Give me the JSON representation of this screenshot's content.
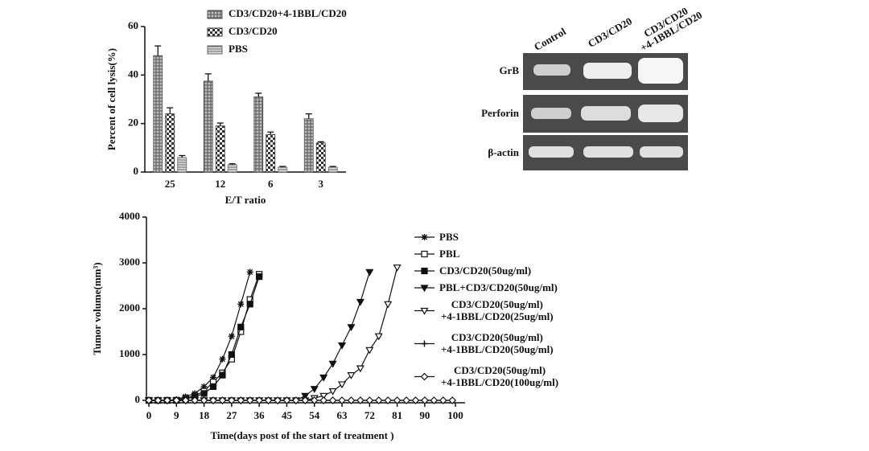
{
  "chart_data": [
    {
      "type": "bar",
      "y_label": "Percent of cell lysis(%)",
      "x_label": "E/T ratio",
      "categories": [
        "25",
        "12",
        "6",
        "3"
      ],
      "ylim": [
        0,
        60
      ],
      "yticks": [
        0,
        20,
        40,
        60
      ],
      "series": [
        {
          "name": "CD3/CD20+4-1BBL/CD20",
          "color": "#555555",
          "pattern": "hatch",
          "values": [
            48,
            37.5,
            31,
            22
          ],
          "errors": [
            4,
            3,
            1.5,
            2
          ]
        },
        {
          "name": "CD3/CD20",
          "color": "#333333",
          "pattern": "checker",
          "values": [
            24,
            19,
            15.5,
            12
          ],
          "errors": [
            2.5,
            1.2,
            1,
            0.5
          ]
        },
        {
          "name": "PBS",
          "color": "#666666",
          "pattern": "stripes",
          "values": [
            6,
            3,
            2,
            2
          ],
          "errors": [
            0.8,
            0.4,
            0.3,
            0.3
          ]
        }
      ]
    },
    {
      "type": "line",
      "y_label": "Tumor volume(mm³)",
      "x_label": "Time(days post of the start of treatment )",
      "xlim": [
        0,
        100
      ],
      "xticks": [
        0,
        9,
        18,
        27,
        36,
        45,
        54,
        63,
        72,
        81,
        90,
        100
      ],
      "ylim": [
        0,
        4000
      ],
      "yticks": [
        0,
        1000,
        2000,
        3000,
        4000
      ],
      "series": [
        {
          "name": "PBS",
          "marker": "star",
          "color": "#111111",
          "x": [
            0,
            3,
            6,
            9,
            12,
            15,
            18,
            21,
            24,
            27,
            30,
            33
          ],
          "values": [
            0,
            0,
            0,
            20,
            80,
            150,
            300,
            500,
            900,
            1400,
            2100,
            2800
          ]
        },
        {
          "name": "PBL",
          "marker": "square-open",
          "color": "#111111",
          "x": [
            0,
            3,
            6,
            9,
            12,
            15,
            18,
            21,
            24,
            27,
            30,
            33,
            36
          ],
          "values": [
            0,
            0,
            0,
            0,
            50,
            100,
            200,
            400,
            600,
            900,
            1500,
            2200,
            2750
          ]
        },
        {
          "name": "CD3/CD20(50ug/ml)",
          "marker": "square",
          "color": "#111111",
          "x": [
            0,
            3,
            6,
            9,
            12,
            15,
            18,
            21,
            24,
            27,
            30,
            33,
            36
          ],
          "values": [
            0,
            0,
            0,
            0,
            30,
            80,
            150,
            300,
            550,
            1000,
            1600,
            2100,
            2700
          ]
        },
        {
          "name": "PBL+CD3/CD20(50ug/ml)",
          "marker": "triangle-down",
          "color": "#111111",
          "x": [
            0,
            3,
            6,
            9,
            12,
            15,
            18,
            21,
            24,
            27,
            30,
            33,
            36,
            39,
            42,
            45,
            48,
            51,
            54,
            57,
            60,
            63,
            66,
            69,
            72
          ],
          "values": [
            0,
            0,
            0,
            0,
            0,
            0,
            0,
            0,
            0,
            0,
            0,
            0,
            0,
            0,
            0,
            0,
            0,
            100,
            250,
            500,
            800,
            1200,
            1600,
            2150,
            2800
          ]
        },
        {
          "name": "CD3/CD20(50ug/ml)\n+4-1BBL/CD20(25ug/ml)",
          "marker": "triangle-down-open",
          "color": "#111111",
          "x": [
            0,
            3,
            6,
            9,
            12,
            15,
            18,
            21,
            24,
            27,
            30,
            33,
            36,
            39,
            42,
            45,
            48,
            51,
            54,
            57,
            60,
            63,
            66,
            69,
            72,
            75,
            78,
            81
          ],
          "values": [
            0,
            0,
            0,
            0,
            0,
            0,
            0,
            0,
            0,
            0,
            0,
            0,
            0,
            0,
            0,
            0,
            0,
            0,
            50,
            100,
            200,
            350,
            550,
            700,
            1100,
            1400,
            2100,
            2900
          ]
        },
        {
          "name": "CD3/CD20(50ug/ml)\n+4-1BBL/CD20(50ug/ml)",
          "marker": "plus",
          "color": "#111111",
          "x": [
            0,
            3,
            6,
            9,
            12,
            15,
            18,
            21,
            24,
            27,
            30,
            33,
            36,
            39,
            42,
            45,
            48,
            51,
            54,
            57,
            60,
            63,
            66,
            69,
            72,
            75,
            78,
            81,
            84,
            87,
            90,
            93,
            96,
            99
          ],
          "values": [
            0,
            0,
            0,
            0,
            0,
            0,
            0,
            0,
            0,
            0,
            0,
            0,
            0,
            0,
            0,
            0,
            0,
            0,
            0,
            0,
            0,
            0,
            0,
            0,
            0,
            0,
            0,
            0,
            0,
            0,
            0,
            0,
            0,
            0
          ]
        },
        {
          "name": "CD3/CD20(50ug/ml)\n+4-1BBL/CD20(100ug/ml)",
          "marker": "diamond-open",
          "color": "#111111",
          "x": [
            0,
            3,
            6,
            9,
            12,
            15,
            18,
            21,
            24,
            27,
            30,
            33,
            36,
            39,
            42,
            45,
            48,
            51,
            54,
            57,
            60,
            63,
            66,
            69,
            72,
            75,
            78,
            81,
            84,
            87,
            90,
            93,
            96,
            99
          ],
          "values": [
            0,
            0,
            0,
            0,
            0,
            0,
            0,
            0,
            0,
            0,
            0,
            0,
            0,
            0,
            0,
            0,
            0,
            0,
            0,
            0,
            0,
            0,
            0,
            0,
            0,
            0,
            0,
            0,
            0,
            0,
            0,
            0,
            0,
            0
          ]
        }
      ]
    }
  ],
  "blot": {
    "columns": [
      "Control",
      "CD3/CD20",
      "CD3/CD20\n+4-1BBL/CD20"
    ],
    "rows": [
      "GrB",
      "Perforin",
      "β-actin"
    ]
  }
}
